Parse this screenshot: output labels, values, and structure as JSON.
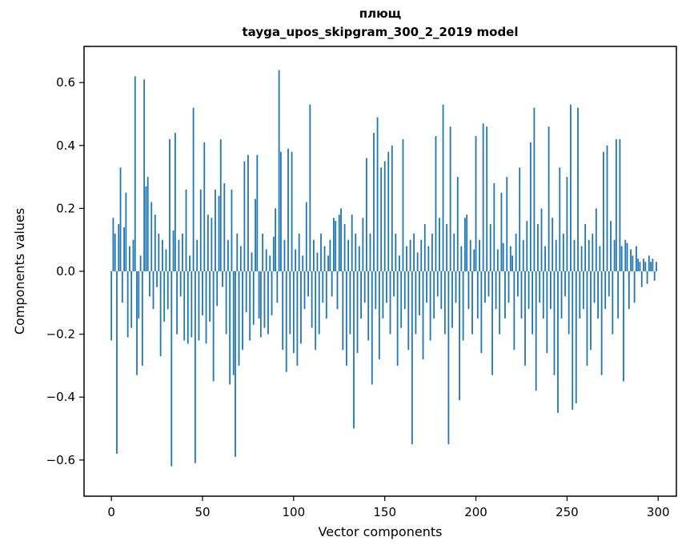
{
  "figure": {
    "title_line1": "плющ",
    "title_line2": "tayga_upos_skipgram_300_2_2019 model",
    "xlabel": "Vector components",
    "ylabel": "Components values"
  },
  "chart_data": {
    "type": "bar",
    "title": "плющ\ntayga_upos_skipgram_300_2_2019 model",
    "xlabel": "Vector components",
    "ylabel": "Components values",
    "bar_color": "#1f77b4",
    "grid": false,
    "legend": false,
    "x_start": 0,
    "x_ticks": [
      0,
      50,
      100,
      150,
      200,
      250,
      300
    ],
    "y_ticks": [
      -0.6,
      -0.4,
      -0.2,
      0.0,
      0.2,
      0.4,
      0.6
    ],
    "xlim": [
      -15,
      310
    ],
    "ylim": [
      -0.715,
      0.715
    ],
    "values": [
      -0.22,
      0.17,
      0.12,
      -0.58,
      0.15,
      0.33,
      -0.1,
      0.14,
      0.25,
      -0.21,
      0.08,
      -0.18,
      0.1,
      0.62,
      -0.33,
      -0.15,
      0.05,
      -0.3,
      0.61,
      0.27,
      0.3,
      -0.08,
      0.22,
      -0.12,
      0.18,
      -0.05,
      0.12,
      -0.27,
      0.1,
      -0.16,
      0.07,
      -0.12,
      0.42,
      -0.62,
      0.13,
      0.44,
      -0.2,
      0.1,
      -0.08,
      0.12,
      -0.22,
      0.26,
      -0.23,
      0.05,
      -0.21,
      0.52,
      -0.61,
      0.1,
      -0.22,
      0.26,
      -0.14,
      0.41,
      -0.23,
      0.18,
      -0.16,
      0.17,
      -0.35,
      0.26,
      -0.11,
      0.24,
      0.42,
      -0.05,
      0.28,
      -0.2,
      0.1,
      -0.36,
      0.26,
      -0.33,
      -0.59,
      0.12,
      -0.3,
      0.08,
      -0.25,
      0.35,
      -0.13,
      0.37,
      -0.22,
      0.06,
      -0.17,
      0.23,
      0.37,
      -0.15,
      -0.21,
      0.12,
      -0.18,
      0.07,
      -0.2,
      0.05,
      -0.14,
      0.11,
      0.2,
      -0.1,
      0.64,
      0.38,
      -0.25,
      0.1,
      -0.32,
      0.39,
      -0.2,
      0.38,
      -0.26,
      0.07,
      -0.3,
      0.12,
      -0.23,
      0.05,
      -0.12,
      0.22,
      -0.08,
      0.53,
      -0.18,
      0.1,
      -0.25,
      0.06,
      -0.2,
      0.12,
      -0.1,
      0.08,
      -0.15,
      0.05,
      0.1,
      -0.08,
      0.17,
      0.16,
      -0.12,
      0.18,
      0.2,
      -0.25,
      0.15,
      -0.3,
      0.1,
      -0.2,
      0.18,
      -0.5,
      0.12,
      -0.26,
      0.08,
      -0.15,
      0.17,
      -0.1,
      0.36,
      -0.22,
      0.12,
      -0.36,
      0.44,
      -0.12,
      0.49,
      -0.28,
      0.33,
      -0.15,
      0.35,
      -0.1,
      0.38,
      -0.2,
      0.4,
      -0.08,
      0.12,
      -0.3,
      0.05,
      -0.18,
      0.42,
      -0.12,
      0.08,
      -0.25,
      0.1,
      -0.55,
      0.12,
      -0.2,
      0.06,
      -0.14,
      0.1,
      -0.28,
      0.15,
      -0.1,
      0.08,
      -0.22,
      0.12,
      -0.15,
      0.43,
      -0.08,
      0.17,
      -0.12,
      0.53,
      -0.2,
      0.15,
      -0.55,
      0.46,
      -0.18,
      0.12,
      -0.1,
      0.3,
      -0.41,
      0.08,
      -0.22,
      0.17,
      0.18,
      -0.12,
      0.1,
      -0.2,
      0.07,
      0.43,
      -0.15,
      0.1,
      -0.26,
      0.47,
      -0.1,
      0.46,
      -0.08,
      0.15,
      -0.33,
      0.28,
      -0.12,
      0.07,
      -0.2,
      0.25,
      0.09,
      -0.15,
      0.3,
      -0.1,
      0.08,
      0.05,
      -0.25,
      0.12,
      -0.08,
      0.33,
      -0.15,
      0.1,
      -0.3,
      0.16,
      -0.12,
      0.41,
      -0.2,
      0.52,
      -0.38,
      0.15,
      -0.1,
      0.2,
      -0.15,
      0.08,
      -0.26,
      0.46,
      -0.12,
      0.17,
      -0.33,
      0.1,
      -0.45,
      0.33,
      -0.15,
      0.12,
      -0.08,
      0.3,
      -0.2,
      0.53,
      -0.44,
      0.1,
      -0.42,
      0.52,
      -0.15,
      0.08,
      -0.12,
      0.15,
      -0.3,
      0.1,
      -0.25,
      0.12,
      -0.1,
      0.2,
      -0.15,
      0.08,
      -0.33,
      0.38,
      -0.12,
      0.4,
      -0.08,
      0.16,
      -0.2,
      0.1,
      0.42,
      -0.15,
      0.42,
      0.08,
      -0.35,
      0.1,
      0.09,
      -0.12,
      0.07,
      0.05,
      -0.1,
      0.08,
      0.04,
      0.03,
      -0.05,
      0.04,
      0.03,
      -0.04,
      0.05,
      0.03,
      0.04,
      -0.03,
      0.03
    ]
  }
}
